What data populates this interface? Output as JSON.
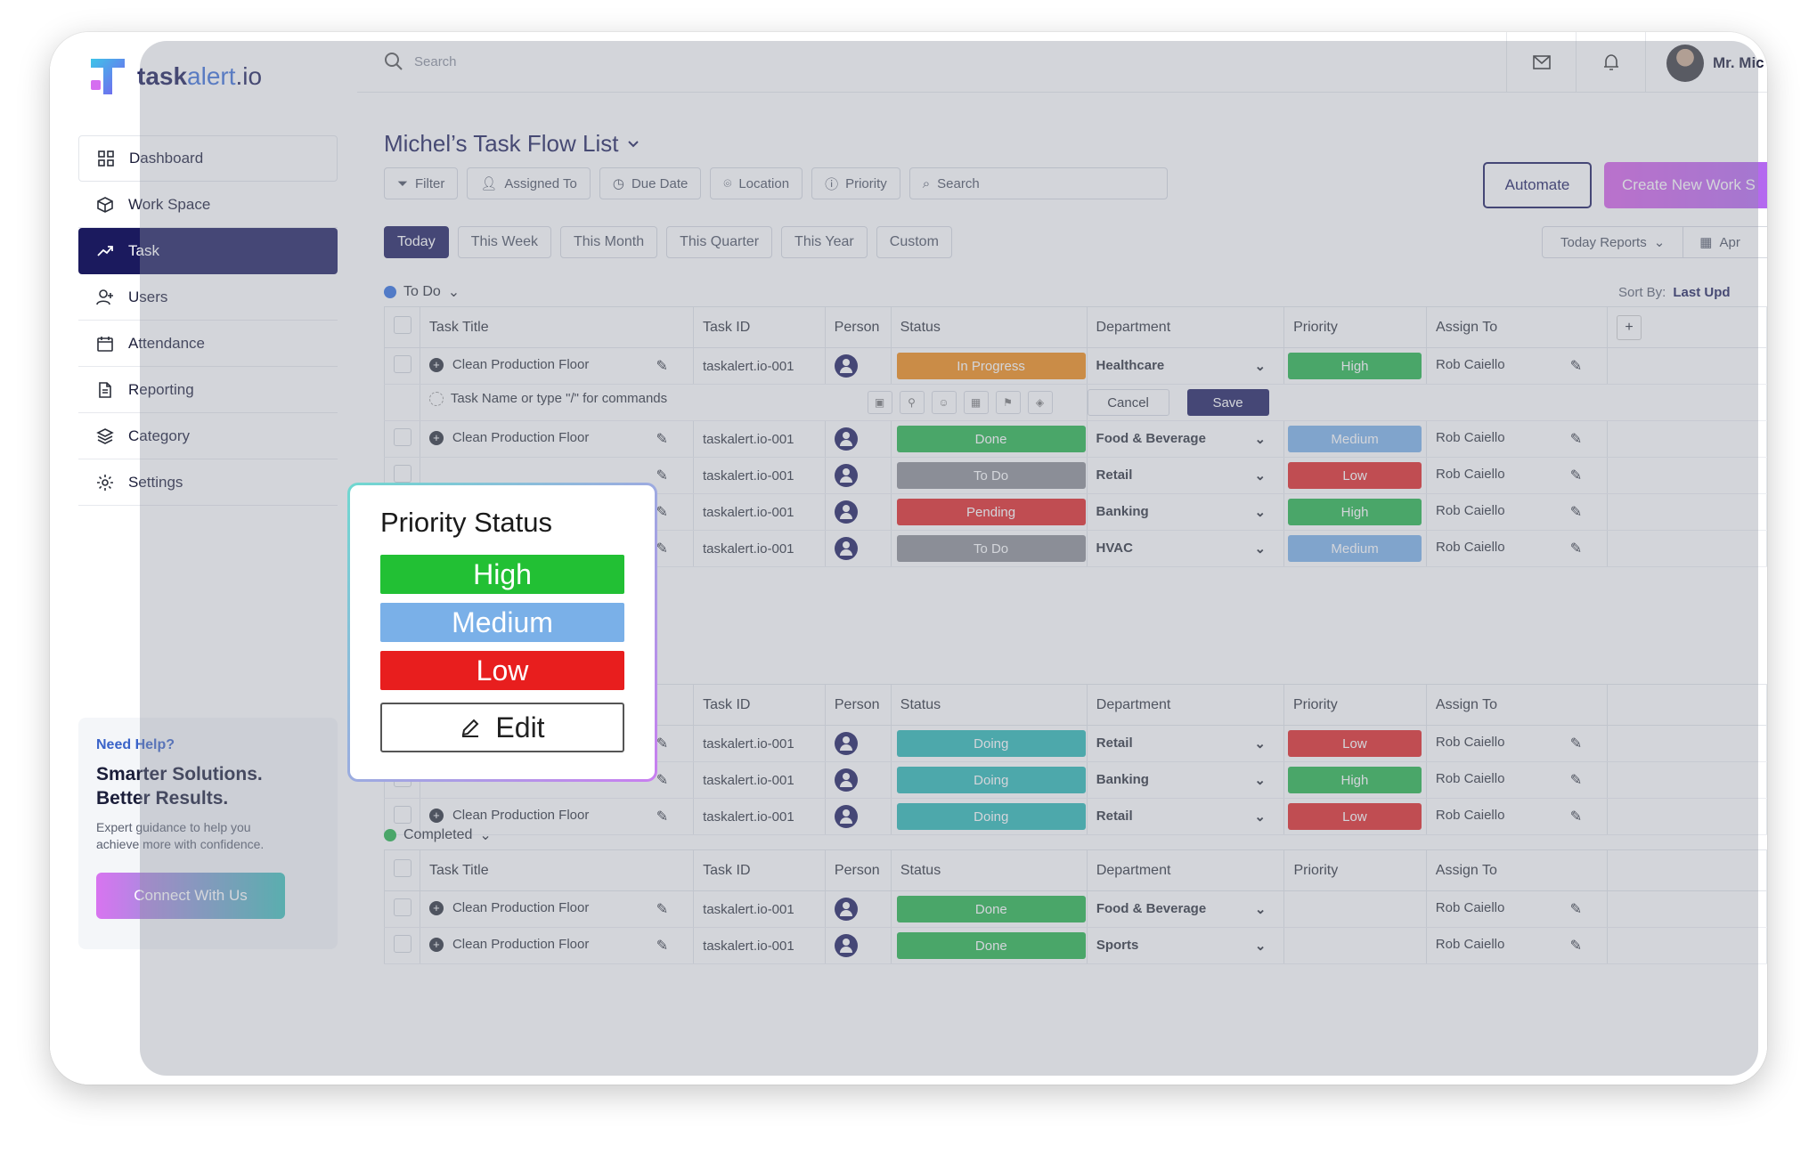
{
  "brand": {
    "bold": "task",
    "alt": "alert",
    "suffix": ".io"
  },
  "sidebar": {
    "items": [
      {
        "label": "Dashboard",
        "icon": "grid-icon"
      },
      {
        "label": "Work Space",
        "icon": "cube-icon"
      },
      {
        "label": "Task",
        "icon": "trend-icon"
      },
      {
        "label": "Users",
        "icon": "user-plus-icon"
      },
      {
        "label": "Attendance",
        "icon": "calendar-icon"
      },
      {
        "label": "Reporting",
        "icon": "document-icon"
      },
      {
        "label": "Category",
        "icon": "layers-icon"
      },
      {
        "label": "Settings",
        "icon": "gear-icon"
      }
    ],
    "help": {
      "kicker": "Need Help?",
      "headline1": "Smarter Solutions.",
      "headline2": "Better Results.",
      "text1": "Expert guidance to help you",
      "text2": "achieve more with confidence.",
      "button": "Connect With Us"
    }
  },
  "topbar": {
    "search_placeholder": "Search",
    "user_name": "Mr. Mic"
  },
  "main": {
    "title": "Michel’s Task Flow List",
    "filters": [
      "Filter",
      "Assigned To",
      "Due Date",
      "Location",
      "Priority",
      "Search"
    ],
    "automate": "Automate",
    "create": "Create New Work S",
    "ranges": [
      "Today",
      "This Week",
      "This Month",
      "This Quarter",
      "This Year",
      "Custom"
    ],
    "reports": {
      "a": "Today Reports",
      "b": "Apr"
    },
    "sort_label": "Sort By:",
    "sort_value": "Last Upd"
  },
  "columns": {
    "title": "Task Title",
    "id": "Task ID",
    "person": "Person",
    "status": "Status",
    "dept": "Department",
    "priority": "Priority",
    "assign": "Assign To"
  },
  "groups": {
    "todo": {
      "label": "To Do",
      "color": "#2f6fe0"
    },
    "completed": {
      "label": "Completed",
      "color": "#22b34a"
    }
  },
  "new_row": {
    "placeholder": "Task Name or type \"/\" for commands",
    "cancel": "Cancel",
    "save": "Save"
  },
  "todo_rows": [
    {
      "title": "Clean Production Floor",
      "id": "taskalert.io-001",
      "status": "In Progress",
      "status_color": "#f08a12",
      "dept": "Healthcare",
      "priority": "High",
      "priority_color": "#22b34a",
      "assign": "Rob Caiello"
    },
    {
      "title": "Clean Production Floor",
      "id": "taskalert.io-001",
      "status": "Done",
      "status_color": "#22b34a",
      "dept": "Food & Beverage",
      "priority": "Medium",
      "priority_color": "#7ab0e8",
      "assign": "Rob Caiello"
    },
    {
      "title": "",
      "id": "taskalert.io-001",
      "status": "To Do",
      "status_color": "#8b8d93",
      "dept": "Retail",
      "priority": "Low",
      "priority_color": "#e02424",
      "assign": "Rob Caiello"
    },
    {
      "title": "",
      "id": "taskalert.io-001",
      "status": "Pending",
      "status_color": "#e02424",
      "dept": "Banking",
      "priority": "High",
      "priority_color": "#22b34a",
      "assign": "Rob Caiello"
    },
    {
      "title": "",
      "id": "taskalert.io-001",
      "status": "To Do",
      "status_color": "#8b8d93",
      "dept": "HVAC",
      "priority": "Medium",
      "priority_color": "#7ab0e8",
      "assign": "Rob Caiello"
    }
  ],
  "doing_rows": [
    {
      "title": "",
      "id": "taskalert.io-001",
      "status": "Doing",
      "status_color": "#27b7b4",
      "dept": "Retail",
      "priority": "Low",
      "priority_color": "#e02424",
      "assign": "Rob Caiello"
    },
    {
      "title": "",
      "id": "taskalert.io-001",
      "status": "Doing",
      "status_color": "#27b7b4",
      "dept": "Banking",
      "priority": "High",
      "priority_color": "#22b34a",
      "assign": "Rob Caiello"
    },
    {
      "title": "Clean Production Floor",
      "id": "taskalert.io-001",
      "status": "Doing",
      "status_color": "#27b7b4",
      "dept": "Retail",
      "priority": "Low",
      "priority_color": "#e02424",
      "assign": "Rob Caiello"
    }
  ],
  "completed_rows": [
    {
      "title": "Clean Production Floor",
      "id": "taskalert.io-001",
      "status": "Done",
      "status_color": "#22b34a",
      "dept": "Food & Beverage",
      "priority": "",
      "priority_color": "",
      "assign": "Rob Caiello"
    },
    {
      "title": "Clean Production Floor",
      "id": "taskalert.io-001",
      "status": "Done",
      "status_color": "#22b34a",
      "dept": "Sports",
      "priority": "",
      "priority_color": "",
      "assign": "Rob Caiello"
    }
  ],
  "popup": {
    "title": "Priority Status",
    "options": [
      {
        "label": "High",
        "color": "#22c034"
      },
      {
        "label": "Medium",
        "color": "#7ab0e8"
      },
      {
        "label": "Low",
        "color": "#e81e1e"
      }
    ],
    "edit": "Edit"
  }
}
